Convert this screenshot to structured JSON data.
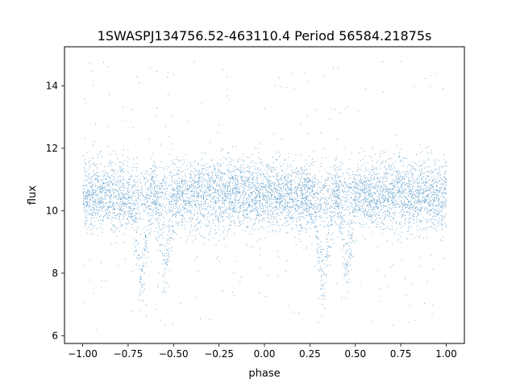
{
  "chart_data": {
    "type": "scatter",
    "title": "1SWASPJ134756.52-463110.4 Period 56584.21875s",
    "xlabel": "phase",
    "ylabel": "flux",
    "xlim": [
      -1.1,
      1.1
    ],
    "ylim": [
      5.75,
      15.25
    ],
    "xticks": [
      -1.0,
      -0.75,
      -0.5,
      -0.25,
      0.0,
      0.25,
      0.5,
      0.75,
      1.0
    ],
    "xtick_labels": [
      "−1.00",
      "−0.75",
      "−0.50",
      "−0.25",
      "0.00",
      "0.25",
      "0.50",
      "0.75",
      "1.00"
    ],
    "yticks": [
      6,
      8,
      10,
      12,
      14
    ],
    "ytick_labels": [
      "6",
      "8",
      "10",
      "12",
      "14"
    ],
    "grid": false,
    "legend": "none",
    "marker_color": "#1f77b4",
    "phase_range": [
      -1.0,
      1.0
    ],
    "baseline_flux": 10.5,
    "eclipses": [
      {
        "phase_center": -0.68,
        "depth_flux": 2.6
      },
      {
        "phase_center": -0.55,
        "depth_flux": 2.2
      },
      {
        "phase_center": 0.32,
        "depth_flux": 2.6
      },
      {
        "phase_center": 0.45,
        "depth_flux": 2.2
      }
    ]
  }
}
